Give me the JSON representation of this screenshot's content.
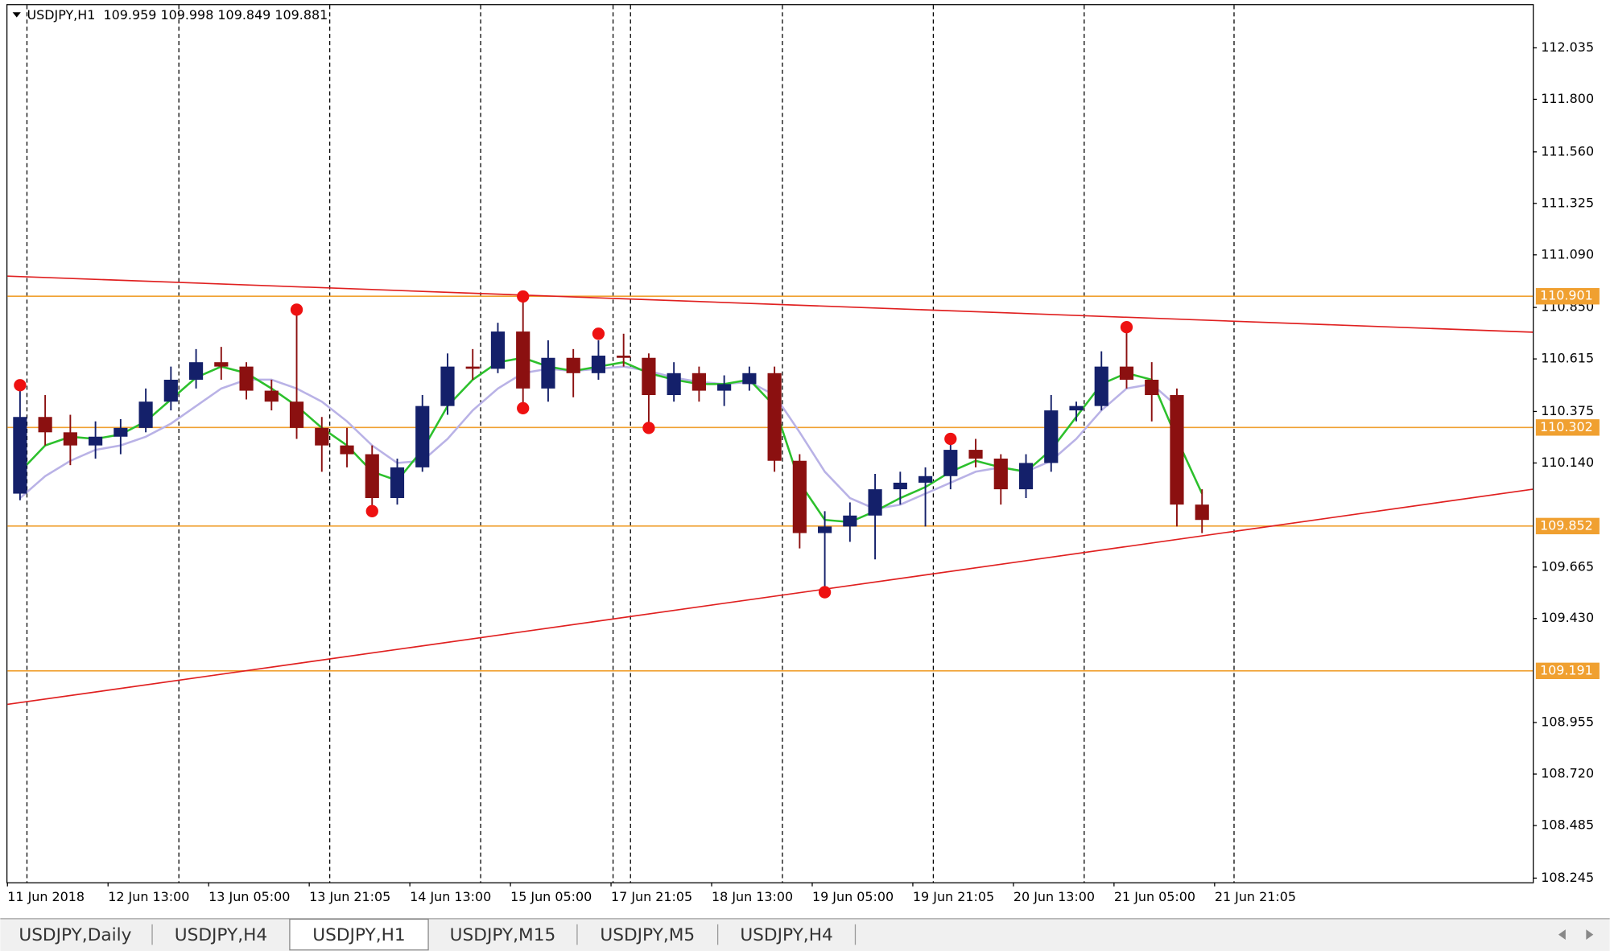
{
  "chart_data": {
    "type": "candlestick",
    "title": "USDJPY,H1",
    "header_values": [
      109.959,
      109.998,
      109.849,
      109.881
    ],
    "open": [
      110.0,
      110.35,
      110.28,
      110.22,
      110.26,
      110.3,
      110.42,
      110.52,
      110.6,
      110.58,
      110.47,
      110.42,
      110.3,
      110.22,
      110.18,
      109.98,
      110.12,
      110.4,
      110.58,
      110.57,
      110.74,
      110.48,
      110.62,
      110.55,
      110.63,
      110.62,
      110.45,
      110.55,
      110.47,
      110.5,
      110.55,
      110.15,
      109.82,
      109.85,
      109.9,
      110.02,
      110.05,
      110.08,
      110.2,
      110.16,
      110.02,
      110.14,
      110.38,
      110.4,
      110.58,
      110.52,
      110.45,
      109.95
    ],
    "high": [
      110.495,
      110.45,
      110.36,
      110.33,
      110.34,
      110.48,
      110.58,
      110.66,
      110.67,
      110.6,
      110.52,
      110.84,
      110.35,
      110.3,
      110.22,
      110.16,
      110.45,
      110.64,
      110.66,
      110.78,
      110.9,
      110.7,
      110.66,
      110.7,
      110.73,
      110.64,
      110.6,
      110.58,
      110.54,
      110.58,
      110.58,
      110.18,
      109.92,
      109.96,
      110.09,
      110.1,
      110.12,
      110.25,
      110.25,
      110.18,
      110.18,
      110.45,
      110.42,
      110.65,
      110.76,
      110.6,
      110.48,
      110.02
    ],
    "low": [
      109.97,
      110.22,
      110.13,
      110.16,
      110.18,
      110.28,
      110.38,
      110.48,
      110.52,
      110.43,
      110.38,
      110.25,
      110.1,
      110.12,
      109.92,
      109.95,
      110.1,
      110.36,
      110.52,
      110.55,
      110.39,
      110.42,
      110.44,
      110.52,
      110.58,
      110.3,
      110.42,
      110.42,
      110.4,
      110.47,
      110.1,
      109.75,
      109.55,
      109.78,
      109.7,
      109.95,
      109.85,
      110.02,
      110.12,
      109.95,
      109.98,
      110.1,
      110.33,
      110.38,
      110.48,
      110.33,
      109.85,
      109.82
    ],
    "close": [
      110.35,
      110.28,
      110.22,
      110.26,
      110.3,
      110.42,
      110.52,
      110.6,
      110.58,
      110.47,
      110.42,
      110.3,
      110.22,
      110.18,
      109.98,
      110.12,
      110.4,
      110.58,
      110.57,
      110.74,
      110.48,
      110.62,
      110.55,
      110.63,
      110.62,
      110.45,
      110.55,
      110.47,
      110.5,
      110.55,
      110.15,
      109.82,
      109.85,
      109.9,
      110.02,
      110.05,
      110.08,
      110.2,
      110.16,
      110.02,
      110.14,
      110.38,
      110.4,
      110.58,
      110.52,
      110.45,
      109.95,
      109.88
    ],
    "up_color": "#14206a",
    "down_color": "#8b1010",
    "series": [
      {
        "color": "#b9b2e6",
        "values": [
          109.98,
          110.08,
          110.15,
          110.2,
          110.22,
          110.26,
          110.32,
          110.4,
          110.48,
          110.52,
          110.52,
          110.48,
          110.42,
          110.33,
          110.22,
          110.14,
          110.15,
          110.25,
          110.38,
          110.48,
          110.55,
          110.57,
          110.56,
          110.57,
          110.58,
          110.56,
          110.53,
          110.51,
          110.5,
          110.51,
          110.45,
          110.28,
          110.1,
          109.98,
          109.93,
          109.95,
          110.0,
          110.05,
          110.1,
          110.12,
          110.1,
          110.15,
          110.25,
          110.38,
          110.48,
          110.5,
          110.4,
          null
        ]
      },
      {
        "color": "#2cc02c",
        "values": [
          110.1,
          110.22,
          110.26,
          110.25,
          110.27,
          110.33,
          110.43,
          110.53,
          110.58,
          110.55,
          110.48,
          110.4,
          110.3,
          110.22,
          110.1,
          110.06,
          110.2,
          110.4,
          110.52,
          110.6,
          110.62,
          110.58,
          110.56,
          110.58,
          110.6,
          110.55,
          110.52,
          110.5,
          110.5,
          110.52,
          110.4,
          110.05,
          109.88,
          109.87,
          109.92,
          109.98,
          110.03,
          110.1,
          110.15,
          110.12,
          110.1,
          110.2,
          110.35,
          110.5,
          110.55,
          110.52,
          110.25,
          110.0
        ]
      }
    ],
    "markers": {
      "color": "#ee1111",
      "x": [
        0.5,
        11.5,
        14.5,
        20.5,
        20.5,
        23.5,
        25.5,
        32.5,
        37.5,
        44.5
      ],
      "values": [
        110.495,
        110.84,
        109.92,
        110.9,
        110.39,
        110.73,
        110.3,
        109.55,
        110.25,
        110.76
      ]
    },
    "levels": {
      "color": "#f0a030",
      "values": [
        110.901,
        110.302,
        109.852,
        109.191
      ]
    },
    "trendlines": {
      "color": "#e02020",
      "values": [
        [
          110.993,
          110.737
        ],
        [
          109.038,
          110.02
        ]
      ]
    },
    "xlim": [
      0,
      60.65
    ],
    "xticks": [
      {
        "value": 0,
        "label": "11 Jun 2018"
      },
      {
        "value": 4,
        "label": "12 Jun 13:00"
      },
      {
        "value": 8,
        "label": "13 Jun 05:00"
      },
      {
        "value": 12,
        "label": "13 Jun 21:05"
      },
      {
        "value": 16,
        "label": "14 Jun 13:00"
      },
      {
        "value": 20,
        "label": "15 Jun 05:00"
      },
      {
        "value": 24,
        "label": "17 Jun 21:05"
      },
      {
        "value": 28,
        "label": "18 Jun 13:00"
      },
      {
        "value": 32,
        "label": "19 Jun 05:00"
      },
      {
        "value": 36,
        "label": "19 Jun 21:05"
      },
      {
        "value": 40,
        "label": "20 Jun 13:00"
      },
      {
        "value": 44,
        "label": "21 Jun 05:00"
      },
      {
        "value": 48,
        "label": "21 Jun 21:05"
      }
    ],
    "ylim": [
      108.226,
      112.23
    ],
    "yticks": [
      112.035,
      {
        "value": 111.8,
        "label": "111.800"
      },
      {
        "value": 111.56,
        "label": "111.560"
      },
      111.325,
      {
        "value": 111.09,
        "label": "111.090"
      },
      {
        "value": 110.85,
        "label": "110.850"
      },
      110.615,
      110.375,
      {
        "value": 110.14,
        "label": "110.140"
      },
      109.665,
      {
        "value": 109.43,
        "label": "109.430"
      },
      108.955,
      {
        "value": 108.72,
        "label": "108.720"
      },
      108.485,
      108.245
    ]
  },
  "tabs": [
    "USDJPY,Daily",
    "USDJPY,H4",
    "USDJPY,H1",
    "USDJPY,M15",
    "USDJPY,M5",
    "USDJPY,H4"
  ],
  "active_tab": 2
}
